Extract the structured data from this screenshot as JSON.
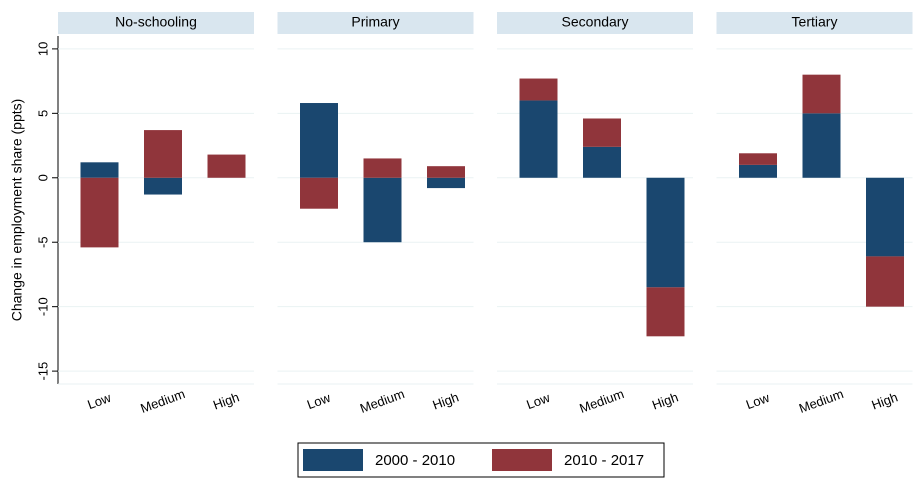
{
  "chart_data": {
    "type": "bar",
    "stacked": true,
    "ylabel": "Change in employment share (ppts)",
    "ylim": [
      -16,
      11
    ],
    "yticks": [
      -15,
      -10,
      -5,
      0,
      5,
      10
    ],
    "grid": true,
    "legend": "bottom",
    "panels": [
      {
        "title": "No-schooling",
        "categories": [
          "Low",
          "Medium",
          "High"
        ]
      },
      {
        "title": "Primary",
        "categories": [
          "Low",
          "Medium",
          "High"
        ]
      },
      {
        "title": "Secondary",
        "categories": [
          "Low",
          "Medium",
          "High"
        ]
      },
      {
        "title": "Tertiary",
        "categories": [
          "Low",
          "Medium",
          "High"
        ]
      }
    ],
    "series": [
      {
        "name": "2000 - 2010",
        "color": "#1a476f",
        "values": [
          [
            1.2,
            -1.3,
            0
          ],
          [
            5.8,
            -5.0,
            -0.8
          ],
          [
            6.0,
            2.4,
            -8.5
          ],
          [
            1.0,
            5.0,
            -6.1
          ]
        ]
      },
      {
        "name": "2010 - 2017",
        "color": "#90353b",
        "values": [
          [
            -5.4,
            3.7,
            1.8
          ],
          [
            -2.4,
            1.5,
            0.9
          ],
          [
            1.7,
            2.2,
            -3.8
          ],
          [
            0.9,
            3.0,
            -3.9
          ]
        ]
      }
    ]
  }
}
